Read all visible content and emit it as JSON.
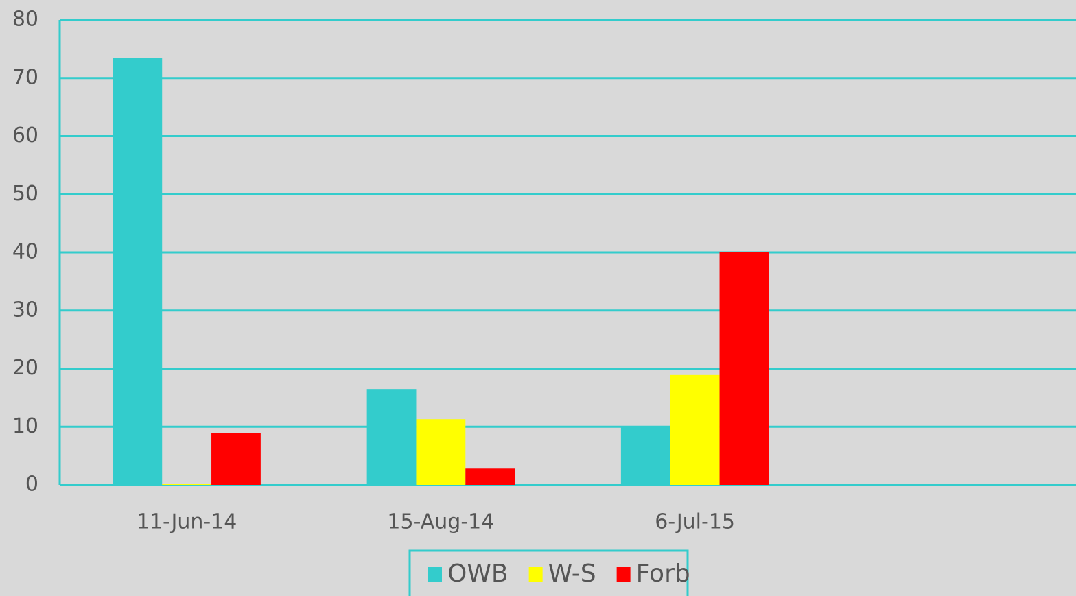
{
  "chart_data": {
    "type": "bar",
    "categories": [
      "11-Jun-14",
      "15-Aug-14",
      "6-Jul-15",
      null
    ],
    "series": [
      {
        "name": "OWB",
        "color": "#33cccc",
        "values": [
          73.4,
          16.5,
          10,
          null
        ]
      },
      {
        "name": "W-S",
        "color": "#ffff00",
        "values": [
          0.2,
          11.3,
          18.9,
          null
        ]
      },
      {
        "name": "Forb",
        "color": "#ff0000",
        "values": [
          8.9,
          2.8,
          40,
          null
        ]
      }
    ],
    "ylim": [
      0,
      80
    ],
    "yticks": [
      0,
      10,
      20,
      30,
      40,
      50,
      60,
      70,
      80
    ],
    "grid": true,
    "legend": "bottom"
  }
}
